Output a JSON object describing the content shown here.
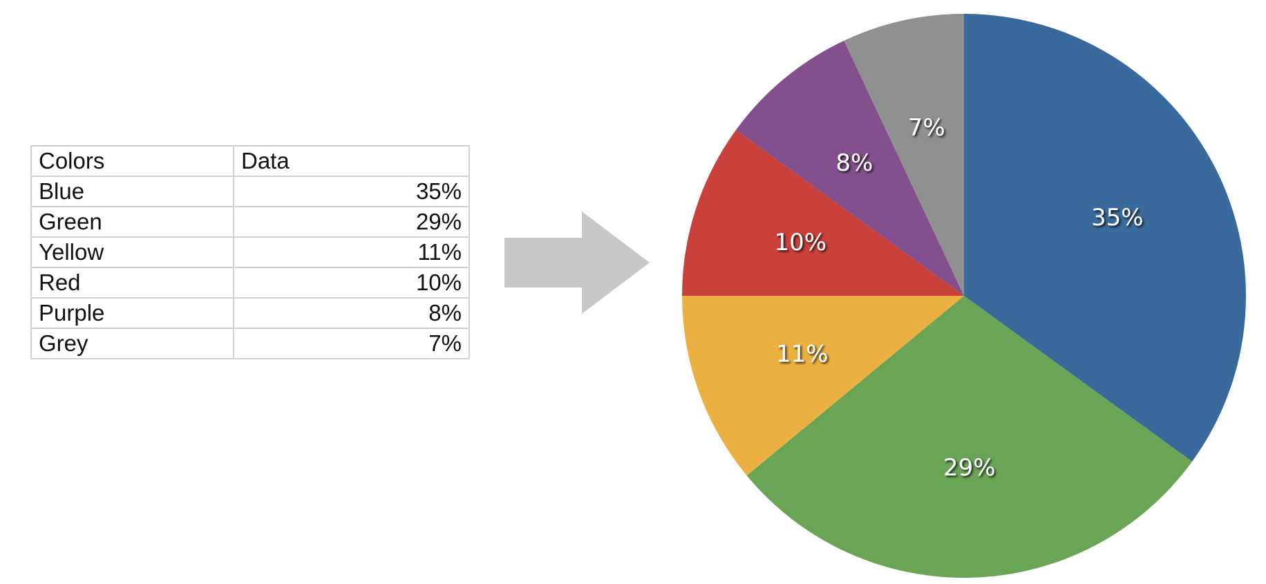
{
  "table": {
    "header": {
      "label": "Colors",
      "value": "Data"
    },
    "rows": [
      {
        "label": "Blue",
        "value": "35%"
      },
      {
        "label": "Green",
        "value": "29%"
      },
      {
        "label": "Yellow",
        "value": "11%"
      },
      {
        "label": "Red",
        "value": "10%"
      },
      {
        "label": "Purple",
        "value": "8%"
      },
      {
        "label": "Grey",
        "value": "7%"
      }
    ]
  },
  "arrow": {
    "icon": "arrow-right-icon",
    "color": "#c8c8c8"
  },
  "chart_data": {
    "type": "pie",
    "title": "",
    "categories": [
      "Blue",
      "Green",
      "Yellow",
      "Red",
      "Purple",
      "Grey"
    ],
    "values": [
      35,
      29,
      11,
      10,
      8,
      7
    ],
    "labels": [
      "35%",
      "29%",
      "11%",
      "10%",
      "8%",
      "7%"
    ],
    "colors": [
      "#3a6a9b",
      "#6aa555",
      "#ebb041",
      "#ca403a",
      "#834f8c",
      "#8f9090"
    ],
    "start_angle": "12 o'clock",
    "direction": "clockwise",
    "legend": "none"
  }
}
